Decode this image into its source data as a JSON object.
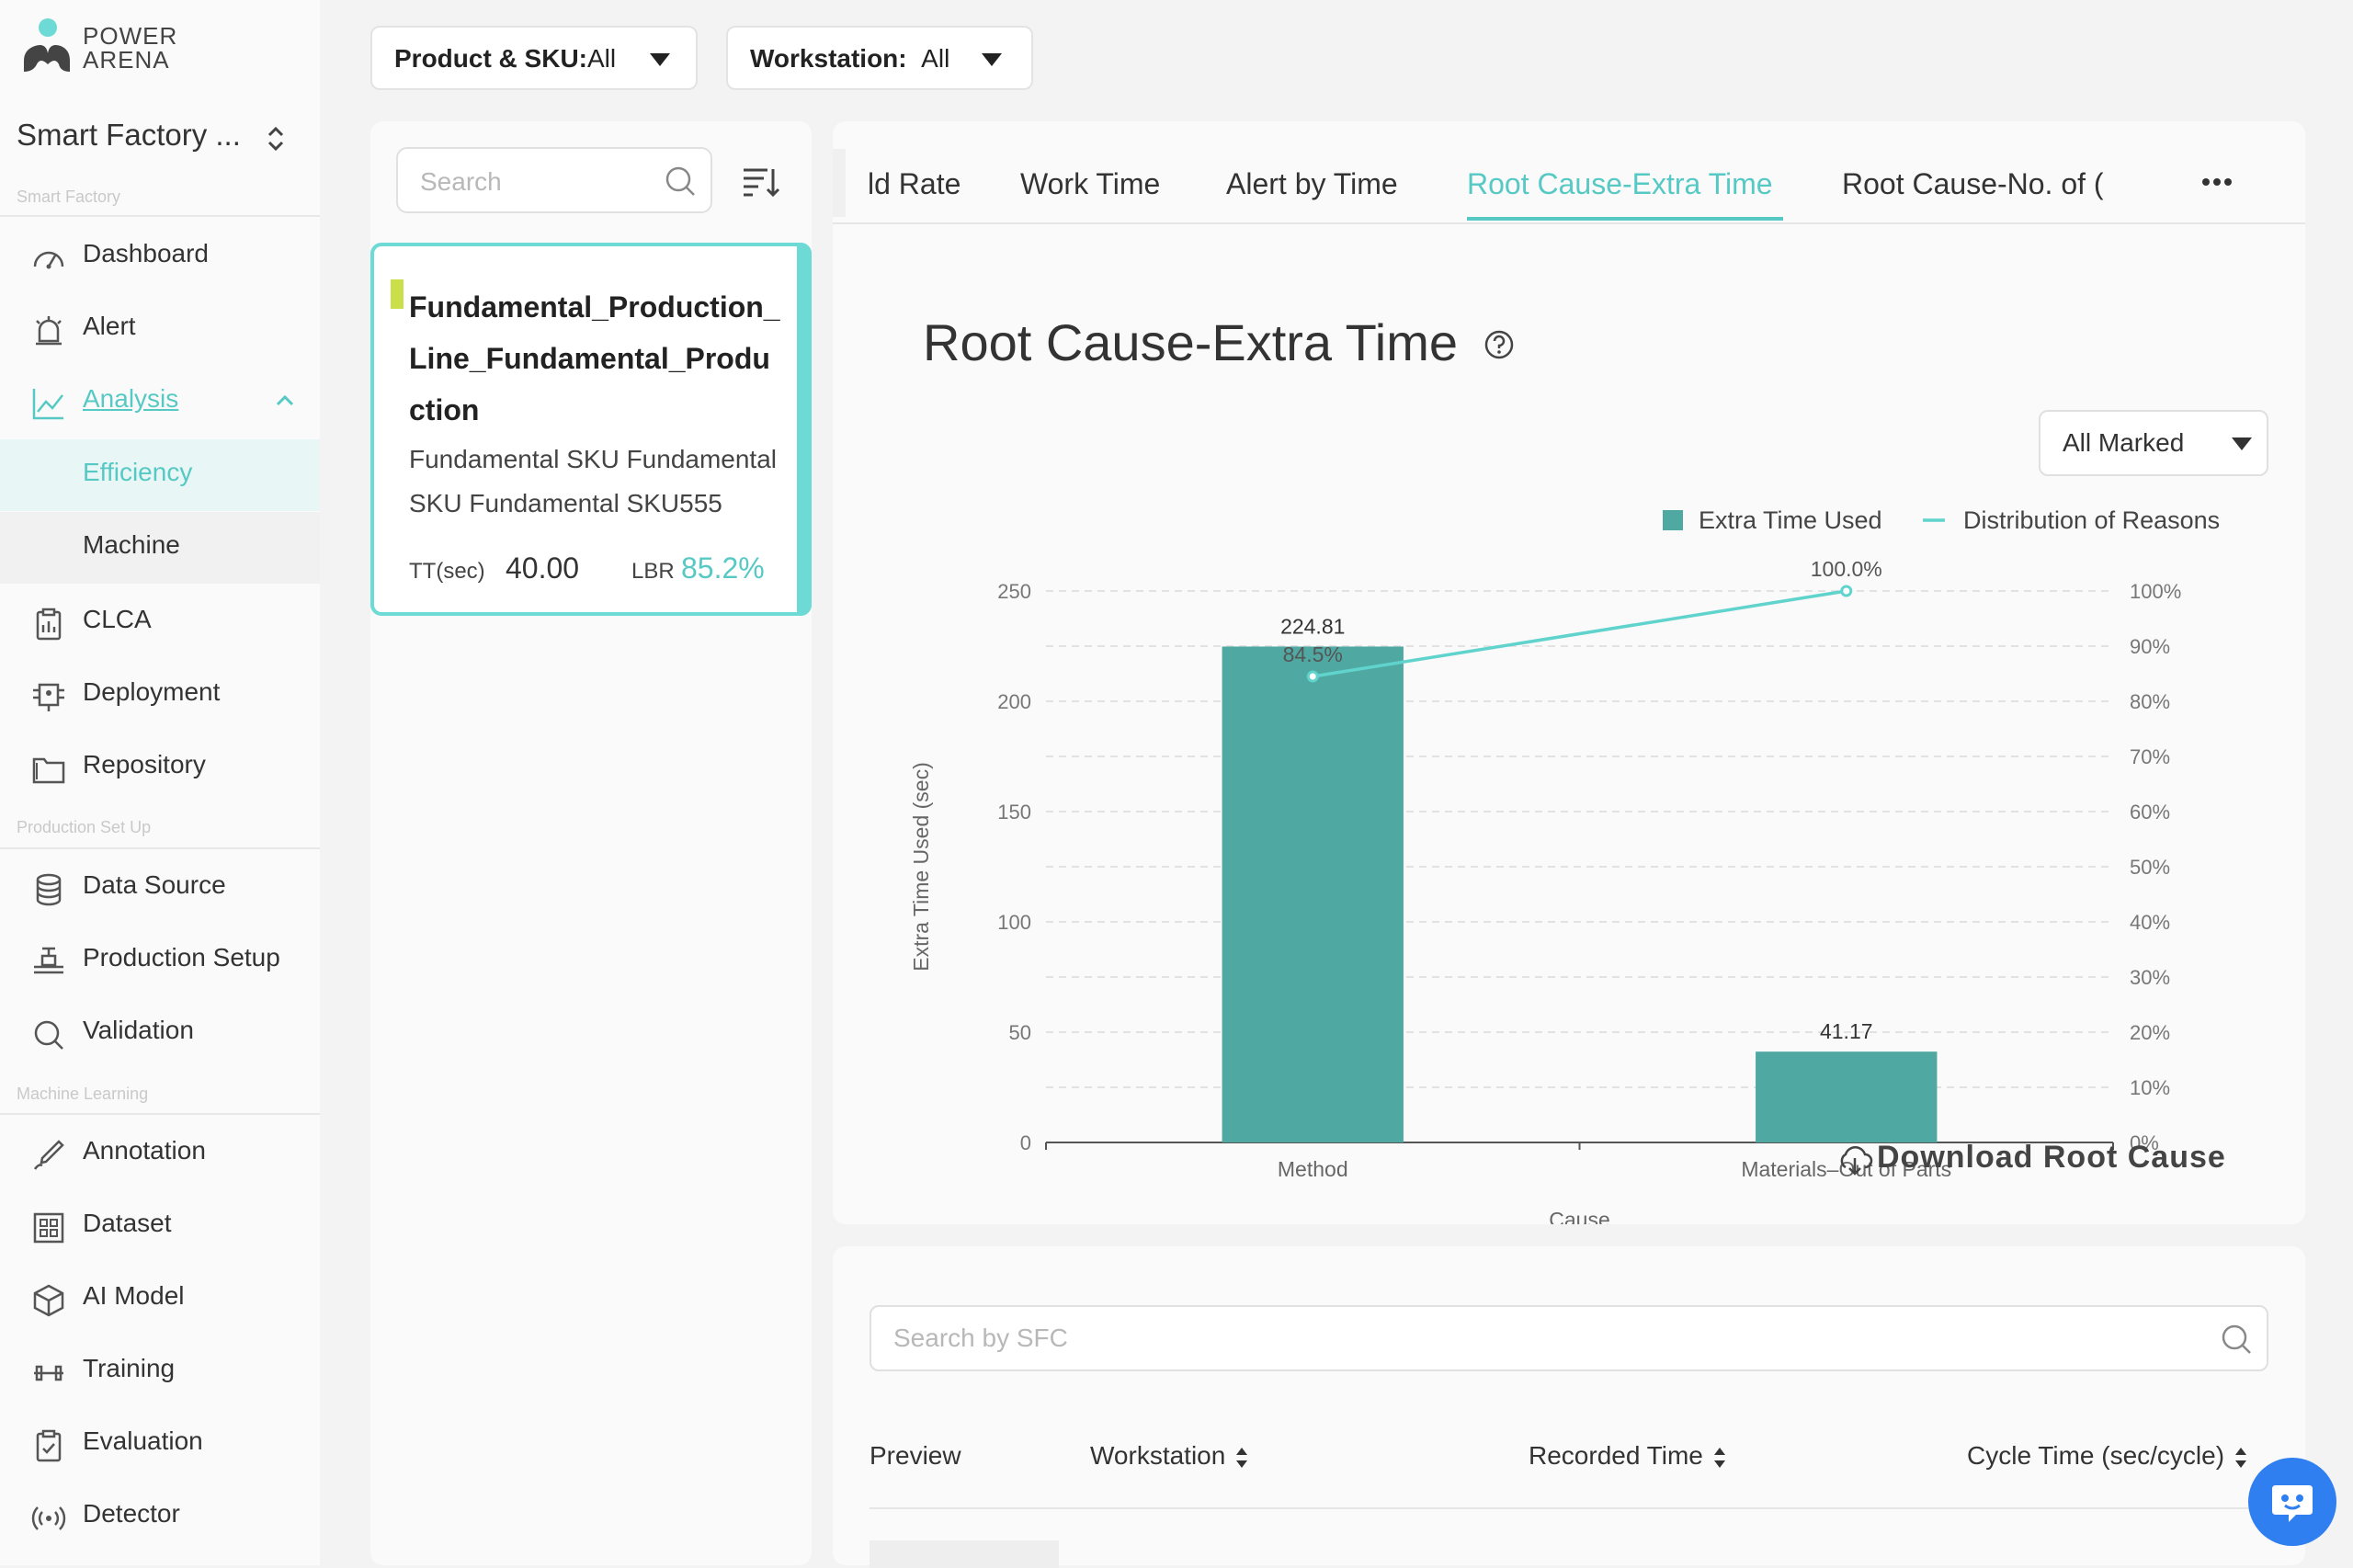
{
  "brand": {
    "line1": "POWER",
    "line2": "ARENA"
  },
  "factory": {
    "name": "Smart Factory ..."
  },
  "sidebar": {
    "sections": [
      {
        "label": "Smart Factory"
      },
      {
        "label": "Production Set Up"
      },
      {
        "label": "Machine Learning"
      }
    ],
    "items": [
      {
        "label": "Dashboard",
        "icon": "gauge-icon"
      },
      {
        "label": "Alert",
        "icon": "alarm-icon"
      },
      {
        "label": "Analysis",
        "icon": "chart-line-icon"
      },
      {
        "label": "Efficiency"
      },
      {
        "label": "Machine"
      },
      {
        "label": "CLCA",
        "icon": "clipboard-icon"
      },
      {
        "label": "Deployment",
        "icon": "deployment-icon"
      },
      {
        "label": "Repository",
        "icon": "folder-icon"
      },
      {
        "label": "Data Source",
        "icon": "database-icon"
      },
      {
        "label": "Production Setup",
        "icon": "conveyor-icon"
      },
      {
        "label": "Validation",
        "icon": "search-icon"
      },
      {
        "label": "Annotation",
        "icon": "pen-icon"
      },
      {
        "label": "Dataset",
        "icon": "grid-icon"
      },
      {
        "label": "AI Model",
        "icon": "cube-icon"
      },
      {
        "label": "Training",
        "icon": "dumbbell-icon"
      },
      {
        "label": "Evaluation",
        "icon": "clipboard-check-icon"
      },
      {
        "label": "Detector",
        "icon": "radar-icon"
      }
    ]
  },
  "filters": {
    "product_label": "Product & SKU:",
    "product_value": "All",
    "workstation_label": "Workstation:",
    "workstation_value": "All"
  },
  "list": {
    "search_placeholder": "Search",
    "card": {
      "title": "Fundamental_Production_Line_Fundamental_Production",
      "subtitle": "Fundamental SKU Fundamental SKU Fundamental SKU555",
      "tt_label": "TT(sec)",
      "tt_value": "40.00",
      "lbr_label": "LBR",
      "lbr_value": "85.2%"
    }
  },
  "tabs": [
    {
      "label": "ld Rate"
    },
    {
      "label": "Work Time"
    },
    {
      "label": "Alert by Time"
    },
    {
      "label": "Root Cause-Extra Time"
    },
    {
      "label": "Root Cause-No. of ("
    }
  ],
  "panel": {
    "title": "Root Cause-Extra Time",
    "mark_select": "All Marked",
    "download_label": "Download Root Cause"
  },
  "chart_data": {
    "type": "bar",
    "title": "",
    "categories": [
      "Method",
      "Materials–Out of Parts"
    ],
    "series": [
      {
        "name": "Extra Time Used",
        "type": "bar",
        "values": [
          224.81,
          41.17
        ],
        "color": "#4fa9a2"
      },
      {
        "name": "Distribution of Reasons",
        "type": "line",
        "values": [
          84.5,
          100.0
        ],
        "color": "#5fd3cc",
        "axis": "right"
      }
    ],
    "data_labels": [
      "224.81",
      "41.17"
    ],
    "line_labels": [
      "84.5%",
      "100.0%"
    ],
    "xlabel": "Cause",
    "ylabel": "Extra Time Used (sec)",
    "ylim": [
      0,
      250
    ],
    "yticks": [
      "0",
      "50",
      "100",
      "150",
      "200",
      "250"
    ],
    "y2lim": [
      0,
      100
    ],
    "y2ticks": [
      "0%",
      "10%",
      "20%",
      "30%",
      "40%",
      "50%",
      "60%",
      "70%",
      "80%",
      "90%",
      "100%"
    ],
    "grid": true,
    "legend": "top-right"
  },
  "table": {
    "search_placeholder": "Search by SFC",
    "columns": [
      {
        "label": "Preview"
      },
      {
        "label": "Workstation"
      },
      {
        "label": "Recorded Time"
      },
      {
        "label": "Cycle Time (sec/cycle)"
      }
    ]
  },
  "colors": {
    "accent": "#57c9c5",
    "bar": "#4fa9a2",
    "line": "#5fd3cc",
    "chat": "#2f7ff0"
  }
}
